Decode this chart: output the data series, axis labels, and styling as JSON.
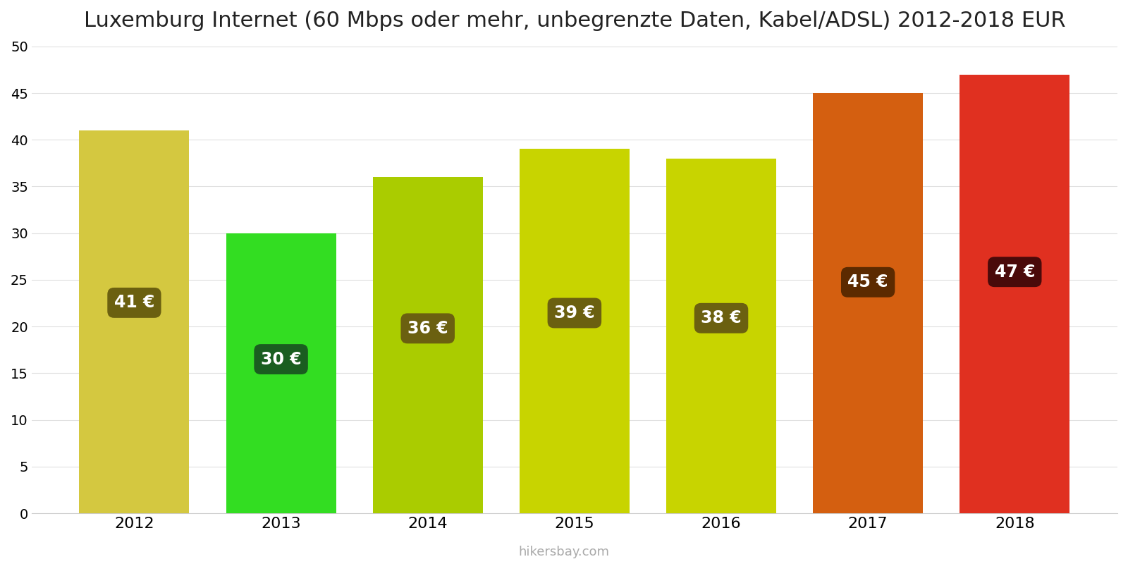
{
  "years": [
    2012,
    2013,
    2014,
    2015,
    2016,
    2017,
    2018
  ],
  "values": [
    41,
    30,
    36,
    39,
    38,
    45,
    47
  ],
  "bar_colors": [
    "#d4c840",
    "#33dd22",
    "#aacc00",
    "#c8d400",
    "#c8d400",
    "#d45f10",
    "#e03020"
  ],
  "label_bg_colors": [
    "#6b6010",
    "#1a5e20",
    "#6b6010",
    "#6b6010",
    "#6b6010",
    "#5c2a00",
    "#4a0a0a"
  ],
  "title": "Luxemburg Internet (60 Mbps oder mehr, unbegrenzte Daten, Kabel/ADSL) 2012-2018 EUR",
  "ylim": [
    0,
    50
  ],
  "yticks": [
    0,
    5,
    10,
    15,
    20,
    25,
    30,
    35,
    40,
    45,
    50
  ],
  "watermark": "hikersbay.com",
  "label_fontsize": 17,
  "title_fontsize": 22,
  "bar_width": 0.75,
  "xlim": [
    2011.3,
    2018.7
  ]
}
